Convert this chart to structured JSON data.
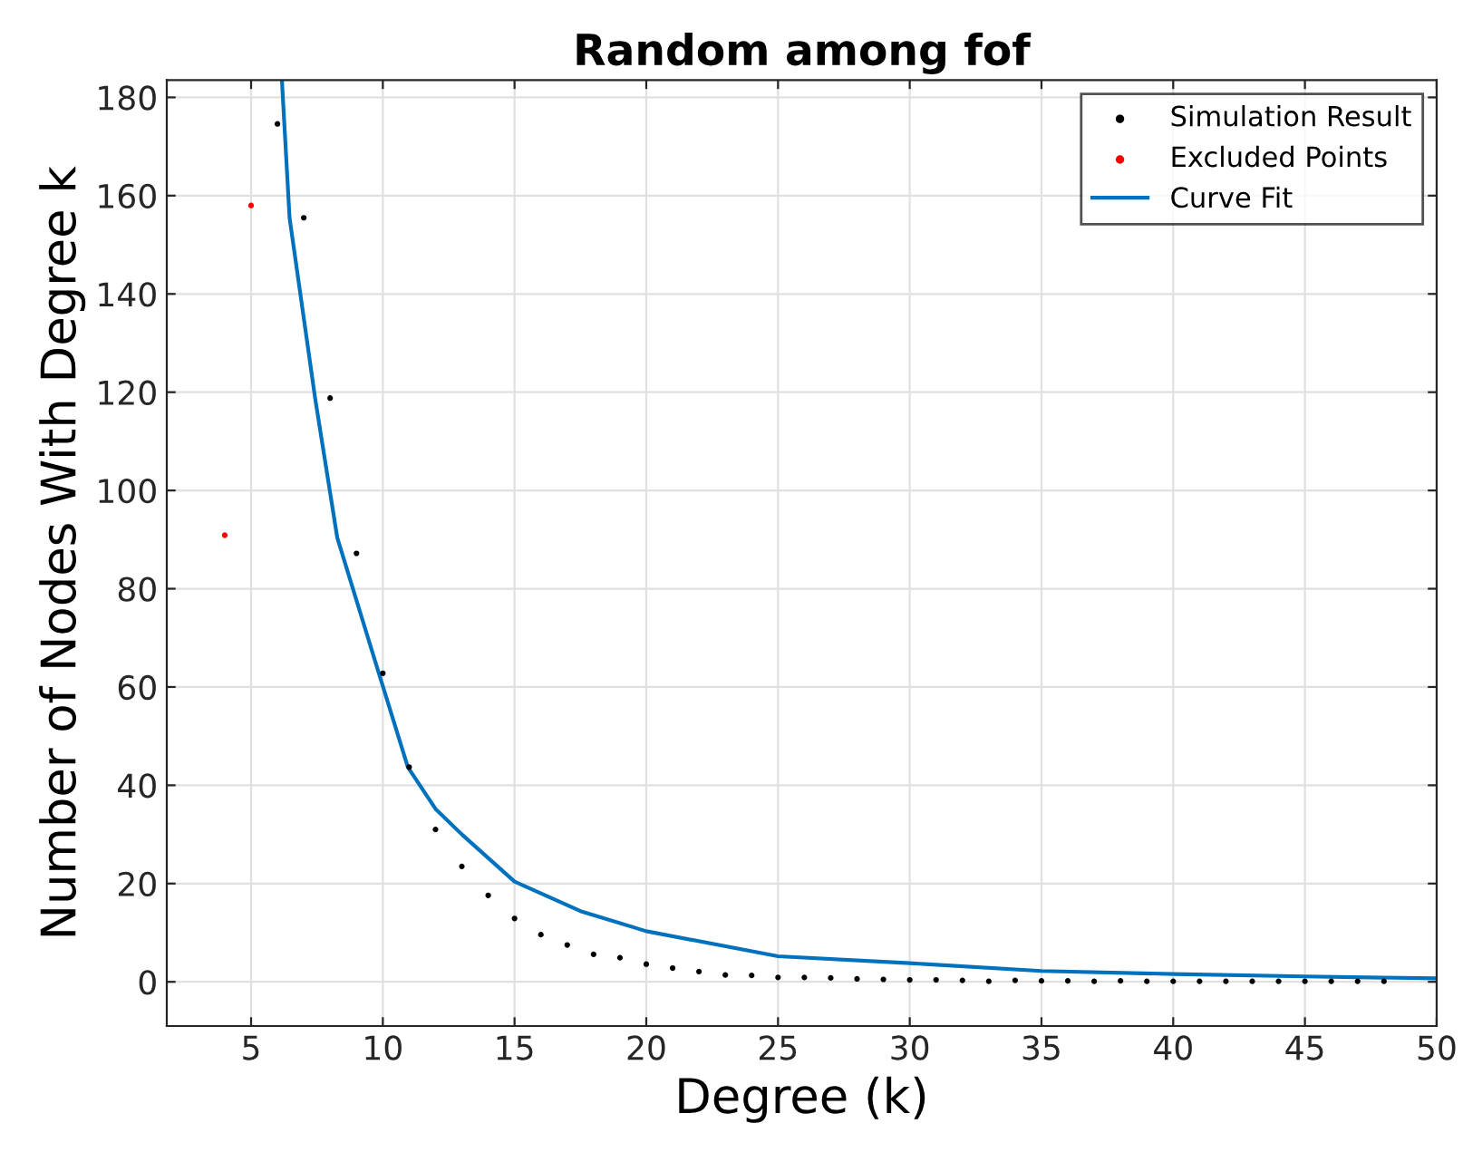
{
  "chart_data": {
    "type": "scatter",
    "title": "Random among fof",
    "xlabel": "Degree (k)",
    "ylabel": "Number of Nodes With Degree k",
    "xlim": [
      1.8,
      50
    ],
    "ylim": [
      -9,
      183.5
    ],
    "xticks": [
      5,
      10,
      15,
      20,
      25,
      30,
      35,
      40,
      45,
      50
    ],
    "yticks": [
      0,
      20,
      40,
      60,
      80,
      100,
      120,
      140,
      160,
      180
    ],
    "grid": true,
    "legend": "top right",
    "series": [
      {
        "name": "Simulation Result",
        "marker": "circle",
        "color": "#000000",
        "x": [
          6,
          7,
          8,
          9,
          10,
          11,
          12,
          13,
          14,
          15,
          16,
          17,
          18,
          19,
          20,
          21,
          22,
          23,
          24,
          25,
          26,
          27,
          28,
          29,
          30,
          31,
          32,
          33,
          34,
          35,
          36,
          37,
          38,
          39,
          40,
          41,
          42,
          43,
          44,
          45,
          46,
          47,
          48
        ],
        "values": [
          174.6,
          155.5,
          118.8,
          87.2,
          62.8,
          43.7,
          31,
          23.5,
          17.6,
          12.9,
          9.6,
          7.5,
          5.6,
          4.9,
          3.6,
          2.8,
          2.1,
          1.4,
          1.3,
          0.9,
          0.9,
          0.8,
          0.6,
          0.5,
          0.4,
          0.4,
          0.3,
          0.1,
          0.3,
          0.2,
          0.2,
          0.1,
          0.2,
          0.1,
          0.1,
          0.1,
          0.1,
          0.1,
          0.1,
          0.1,
          0.1,
          0.1,
          0.1
        ]
      },
      {
        "name": "Excluded Points",
        "marker": "circle",
        "color": "#ff0000",
        "x": [
          4,
          5
        ],
        "values": [
          90.9,
          158
        ]
      },
      {
        "name": "Curve Fit",
        "type": "line",
        "marker": "none",
        "color": "#0072bd",
        "line_style": "solid",
        "x": [
          6.17,
          6.46,
          7.43,
          8.27,
          9.85,
          10.95,
          12,
          13,
          15,
          17.5,
          20,
          25,
          30,
          35,
          40,
          45,
          50
        ],
        "values": [
          183.5,
          155.5,
          118.8,
          90.4,
          62.8,
          43.7,
          35.2,
          30,
          20.4,
          14.4,
          10.3,
          5.2,
          3.8,
          2.2,
          1.6,
          1.1,
          0.7
        ]
      }
    ]
  }
}
